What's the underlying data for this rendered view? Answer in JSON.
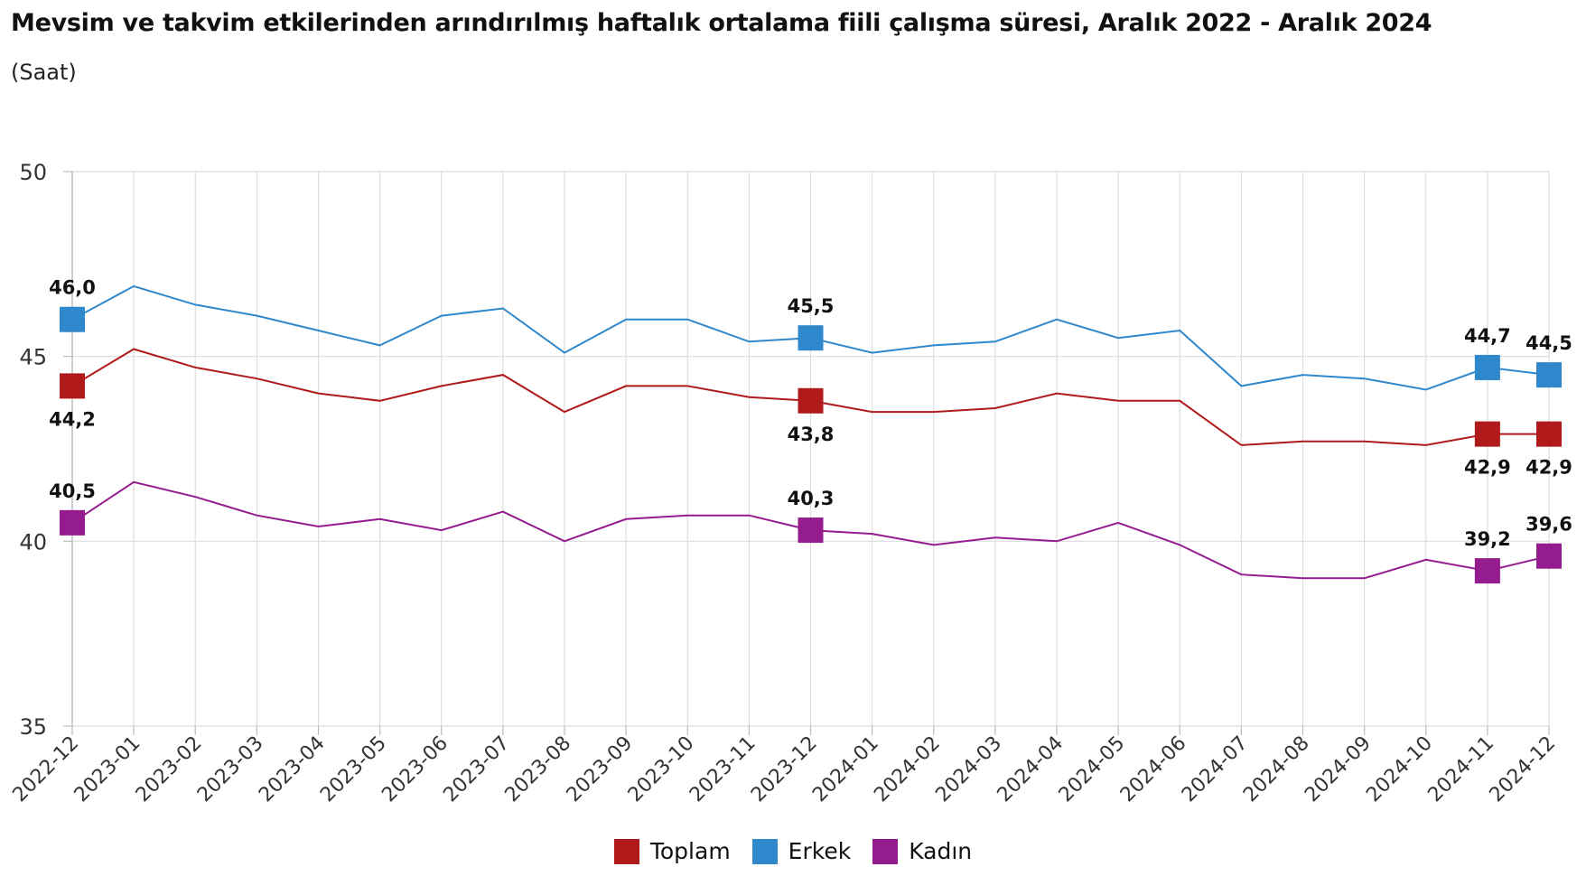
{
  "header": {
    "title": "Mevsim ve takvim etkilerinden arındırılmış haftalık ortalama fiili çalışma süresi, Aralık 2022 - Aralık 2024",
    "unit": "(Saat)"
  },
  "chart_data": {
    "type": "line",
    "categories": [
      "2022-12",
      "2023-01",
      "2023-02",
      "2023-03",
      "2023-04",
      "2023-05",
      "2023-06",
      "2023-07",
      "2023-08",
      "2023-09",
      "2023-10",
      "2023-11",
      "2023-12",
      "2024-01",
      "2024-02",
      "2024-03",
      "2024-04",
      "2024-05",
      "2024-06",
      "2024-07",
      "2024-08",
      "2024-09",
      "2024-10",
      "2024-11",
      "2024-12"
    ],
    "ylim": [
      35,
      50
    ],
    "yticks": [
      "35",
      "40",
      "45",
      "50"
    ],
    "grid": true,
    "legend_position": "bottom-center",
    "series": [
      {
        "name": "Toplam",
        "color": "#b01a1a",
        "values": [
          44.2,
          45.2,
          44.7,
          44.4,
          44.0,
          43.8,
          44.2,
          44.5,
          43.5,
          44.2,
          44.2,
          43.9,
          43.8,
          43.5,
          43.5,
          43.6,
          44.0,
          43.8,
          43.8,
          42.6,
          42.7,
          42.7,
          42.6,
          42.9,
          42.9
        ],
        "labels": [
          {
            "index": 0,
            "text": "44,2",
            "position": "below"
          },
          {
            "index": 12,
            "text": "43,8",
            "position": "below"
          },
          {
            "index": 23,
            "text": "42,9",
            "position": "below"
          },
          {
            "index": 24,
            "text": "42,9",
            "position": "below"
          }
        ]
      },
      {
        "name": "Erkek",
        "color": "#2f87cc",
        "values": [
          46.0,
          46.9,
          46.4,
          46.1,
          45.7,
          45.3,
          46.1,
          46.3,
          45.1,
          46.0,
          46.0,
          45.4,
          45.5,
          45.1,
          45.3,
          45.4,
          46.0,
          45.5,
          45.7,
          44.2,
          44.5,
          44.4,
          44.1,
          44.7,
          44.5
        ],
        "labels": [
          {
            "index": 0,
            "text": "46,0",
            "position": "above"
          },
          {
            "index": 12,
            "text": "45,5",
            "position": "above"
          },
          {
            "index": 23,
            "text": "44,7",
            "position": "above"
          },
          {
            "index": 24,
            "text": "44,5",
            "position": "above"
          }
        ]
      },
      {
        "name": "Kadın",
        "color": "#951c8f",
        "values": [
          40.5,
          41.6,
          41.2,
          40.7,
          40.4,
          40.6,
          40.3,
          40.8,
          40.0,
          40.6,
          40.7,
          40.7,
          40.3,
          40.2,
          39.9,
          40.1,
          40.0,
          40.5,
          39.9,
          39.1,
          39.0,
          39.0,
          39.5,
          39.2,
          39.6
        ],
        "labels": [
          {
            "index": 0,
            "text": "40,5",
            "position": "above"
          },
          {
            "index": 12,
            "text": "40,3",
            "position": "above"
          },
          {
            "index": 23,
            "text": "39,2",
            "position": "above"
          },
          {
            "index": 24,
            "text": "39,6",
            "position": "above"
          }
        ]
      }
    ]
  }
}
